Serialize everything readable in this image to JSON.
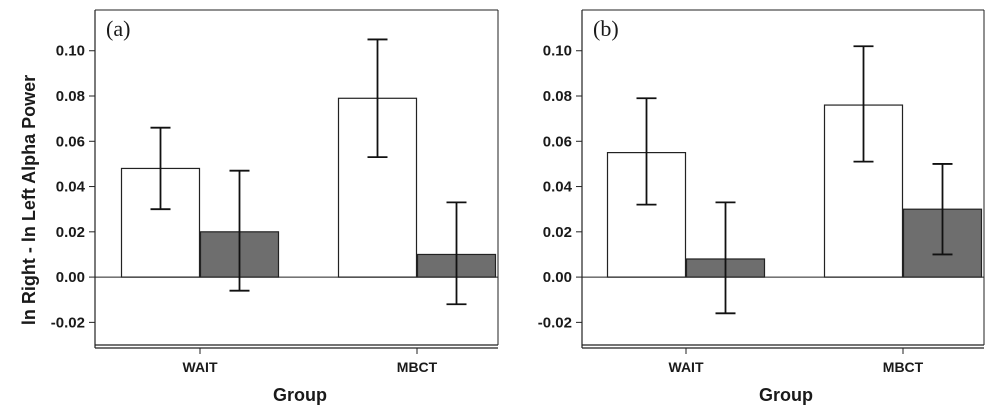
{
  "chart_data": [
    {
      "type": "bar",
      "panel_label": "(a)",
      "xlabel": "Group",
      "ylabel": "ln Right - ln Left Alpha Power",
      "categories": [
        "WAIT",
        "MBCT"
      ],
      "ylim": [
        -0.03,
        0.118
      ],
      "yticks": [
        -0.02,
        0.0,
        0.02,
        0.04,
        0.06,
        0.08,
        0.1
      ],
      "ytick_labels": [
        "-0.02",
        "0.00",
        "0.02",
        "0.04",
        "0.06",
        "0.08",
        "0.10"
      ],
      "series": [
        {
          "color": "#ffffff",
          "values": [
            0.048,
            0.079
          ],
          "error_low": [
            0.03,
            0.053
          ],
          "error_high": [
            0.066,
            0.105
          ]
        },
        {
          "color": "#6e6e6e",
          "values": [
            0.02,
            0.01
          ],
          "error_low": [
            -0.006,
            -0.012
          ],
          "error_high": [
            0.047,
            0.033
          ]
        }
      ]
    },
    {
      "type": "bar",
      "panel_label": "(b)",
      "xlabel": "Group",
      "ylabel": "",
      "categories": [
        "WAIT",
        "MBCT"
      ],
      "ylim": [
        -0.03,
        0.118
      ],
      "yticks": [
        -0.02,
        0.0,
        0.02,
        0.04,
        0.06,
        0.08,
        0.1
      ],
      "ytick_labels": [
        "-0.02",
        "0.00",
        "0.02",
        "0.04",
        "0.06",
        "0.08",
        "0.10"
      ],
      "series": [
        {
          "color": "#ffffff",
          "values": [
            0.055,
            0.076
          ],
          "error_low": [
            0.032,
            0.051
          ],
          "error_high": [
            0.079,
            0.102
          ]
        },
        {
          "color": "#6e6e6e",
          "values": [
            0.008,
            0.03
          ],
          "error_low": [
            -0.016,
            0.01
          ],
          "error_high": [
            0.033,
            0.05
          ]
        }
      ]
    }
  ]
}
